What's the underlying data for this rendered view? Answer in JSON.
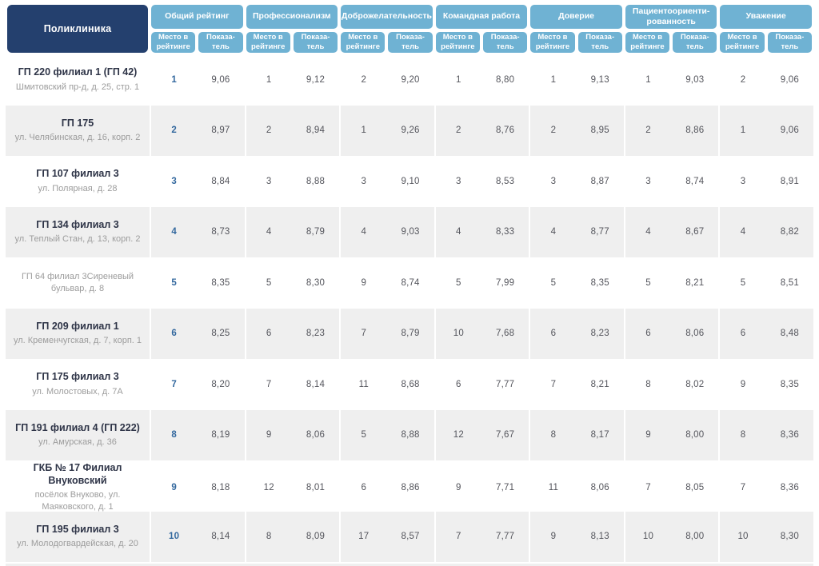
{
  "header": {
    "first_col": "Поликлиника",
    "groups": [
      "Общий рейтинг",
      "Профессионализм",
      "Доброжелательность",
      "Командная работа",
      "Доверие",
      "Пациентоориенти-\nрованность",
      "Уважение"
    ],
    "subcols": [
      "Место в\nрейтинге",
      "Показа-\nтель"
    ]
  },
  "rows": [
    {
      "name": "ГП 220 филиал 1 (ГП 42)",
      "address": "Шмитовский пр-д, д. 25, стр. 1",
      "values": [
        [
          "1",
          "9,06"
        ],
        [
          "1",
          "9,12"
        ],
        [
          "2",
          "9,20"
        ],
        [
          "1",
          "8,80"
        ],
        [
          "1",
          "9,13"
        ],
        [
          "1",
          "9,03"
        ],
        [
          "2",
          "9,06"
        ]
      ]
    },
    {
      "name": "ГП 175",
      "address": "ул. Челябинская, д. 16, корп. 2",
      "values": [
        [
          "2",
          "8,97"
        ],
        [
          "2",
          "8,94"
        ],
        [
          "1",
          "9,26"
        ],
        [
          "2",
          "8,76"
        ],
        [
          "2",
          "8,95"
        ],
        [
          "2",
          "8,86"
        ],
        [
          "1",
          "9,06"
        ]
      ]
    },
    {
      "name": "ГП 107 филиал 3",
      "address": "ул. Полярная, д. 28",
      "values": [
        [
          "3",
          "8,84"
        ],
        [
          "3",
          "8,88"
        ],
        [
          "3",
          "9,10"
        ],
        [
          "3",
          "8,53"
        ],
        [
          "3",
          "8,87"
        ],
        [
          "3",
          "8,74"
        ],
        [
          "3",
          "8,91"
        ]
      ]
    },
    {
      "name": "ГП 134 филиал 3",
      "address": "ул. Теплый Стан, д. 13, корп. 2",
      "values": [
        [
          "4",
          "8,73"
        ],
        [
          "4",
          "8,79"
        ],
        [
          "4",
          "9,03"
        ],
        [
          "4",
          "8,33"
        ],
        [
          "4",
          "8,77"
        ],
        [
          "4",
          "8,67"
        ],
        [
          "4",
          "8,82"
        ]
      ]
    },
    {
      "name": "",
      "address": "ГП 64 филиал 3Сиреневый бульвар, д. 8",
      "values": [
        [
          "5",
          "8,35"
        ],
        [
          "5",
          "8,30"
        ],
        [
          "9",
          "8,74"
        ],
        [
          "5",
          "7,99"
        ],
        [
          "5",
          "8,35"
        ],
        [
          "5",
          "8,21"
        ],
        [
          "5",
          "8,51"
        ]
      ]
    },
    {
      "name": "ГП 209 филиал 1",
      "address": "ул. Кременчугская, д. 7, корп. 1",
      "values": [
        [
          "6",
          "8,25"
        ],
        [
          "6",
          "8,23"
        ],
        [
          "7",
          "8,79"
        ],
        [
          "10",
          "7,68"
        ],
        [
          "6",
          "8,23"
        ],
        [
          "6",
          "8,06"
        ],
        [
          "6",
          "8,48"
        ]
      ]
    },
    {
      "name": "ГП 175 филиал 3",
      "address": "ул. Молостовых, д. 7А",
      "values": [
        [
          "7",
          "8,20"
        ],
        [
          "7",
          "8,14"
        ],
        [
          "11",
          "8,68"
        ],
        [
          "6",
          "7,77"
        ],
        [
          "7",
          "8,21"
        ],
        [
          "8",
          "8,02"
        ],
        [
          "9",
          "8,35"
        ]
      ]
    },
    {
      "name": "ГП 191 филиал 4 (ГП 222)",
      "address": "ул. Амурская, д. 36",
      "values": [
        [
          "8",
          "8,19"
        ],
        [
          "9",
          "8,06"
        ],
        [
          "5",
          "8,88"
        ],
        [
          "12",
          "7,67"
        ],
        [
          "8",
          "8,17"
        ],
        [
          "9",
          "8,00"
        ],
        [
          "8",
          "8,36"
        ]
      ]
    },
    {
      "name": "ГКБ № 17 Филиал Внуковский",
      "address": "посёлок Внуково, ул. Маяковского, д. 1",
      "values": [
        [
          "9",
          "8,18"
        ],
        [
          "12",
          "8,01"
        ],
        [
          "6",
          "8,86"
        ],
        [
          "9",
          "7,71"
        ],
        [
          "11",
          "8,06"
        ],
        [
          "7",
          "8,05"
        ],
        [
          "7",
          "8,36"
        ]
      ]
    },
    {
      "name": "ГП 195 филиал 3",
      "address": "ул. Молодогвардейская, д. 20",
      "values": [
        [
          "10",
          "8,14"
        ],
        [
          "8",
          "8,09"
        ],
        [
          "17",
          "8,57"
        ],
        [
          "7",
          "7,77"
        ],
        [
          "9",
          "8,13"
        ],
        [
          "10",
          "8,00"
        ],
        [
          "10",
          "8,30"
        ]
      ]
    }
  ],
  "colors": {
    "header_blue": "#6FB2D3",
    "header_navy": "#24406E",
    "row_alt_gray": "#EFEFEF",
    "rank_accent_blue": "#33689E",
    "name_text": "#2E3447",
    "address_text": "#9C9C9C"
  }
}
